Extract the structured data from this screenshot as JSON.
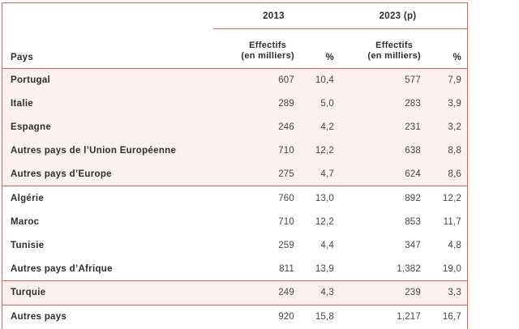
{
  "chart_data": {
    "type": "table",
    "year_headers": [
      "2013",
      "2023 (p)"
    ],
    "columns": {
      "pays": "Pays",
      "effectifs_line1": "Effectifs",
      "effectifs_line2": "(en milliers)",
      "percent": "%"
    },
    "column_order": [
      "pays",
      "eff_2013",
      "pct_2013",
      "eff_2023",
      "pct_2023"
    ],
    "groups": [
      {
        "background": "pink",
        "rows": [
          {
            "pays": "Portugal",
            "eff_2013": "607",
            "pct_2013": "10,4",
            "eff_2023": "577",
            "pct_2023": "7,9"
          },
          {
            "pays": "Italie",
            "eff_2013": "289",
            "pct_2013": "5,0",
            "eff_2023": "283",
            "pct_2023": "3,9"
          },
          {
            "pays": "Espagne",
            "eff_2013": "246",
            "pct_2013": "4,2",
            "eff_2023": "231",
            "pct_2023": "3,2"
          },
          {
            "pays": "Autres pays de l’Union Européenne",
            "eff_2013": "710",
            "pct_2013": "12,2",
            "eff_2023": "638",
            "pct_2023": "8,8"
          },
          {
            "pays": "Autres pays d’Europe",
            "eff_2013": "275",
            "pct_2013": "4,7",
            "eff_2023": "624",
            "pct_2023": "8,6"
          }
        ]
      },
      {
        "background": "white",
        "rows": [
          {
            "pays": "Algérie",
            "eff_2013": "760",
            "pct_2013": "13,0",
            "eff_2023": "892",
            "pct_2023": "12,2"
          },
          {
            "pays": "Maroc",
            "eff_2013": "710",
            "pct_2013": "12,2",
            "eff_2023": "853",
            "pct_2023": "11,7"
          },
          {
            "pays": "Tunisie",
            "eff_2013": "259",
            "pct_2013": "4,4",
            "eff_2023": "347",
            "pct_2023": "4,8"
          },
          {
            "pays": "Autres pays d’Afrique",
            "eff_2013": "811",
            "pct_2013": "13,9",
            "eff_2023": "1,382",
            "pct_2023": "19,0"
          }
        ]
      },
      {
        "background": "pink",
        "rows": [
          {
            "pays": "Turquie",
            "eff_2013": "249",
            "pct_2013": "4,3",
            "eff_2023": "239",
            "pct_2023": "3,3"
          }
        ]
      },
      {
        "background": "white",
        "rows": [
          {
            "pays": "Autres pays",
            "eff_2013": "920",
            "pct_2013": "15,8",
            "eff_2023": "1,217",
            "pct_2023": "16,7"
          }
        ]
      }
    ],
    "colors": {
      "accent_red": "#e15b5c",
      "row_pink": "#fdf1f0",
      "text_dark": "#2e2e2e"
    }
  }
}
